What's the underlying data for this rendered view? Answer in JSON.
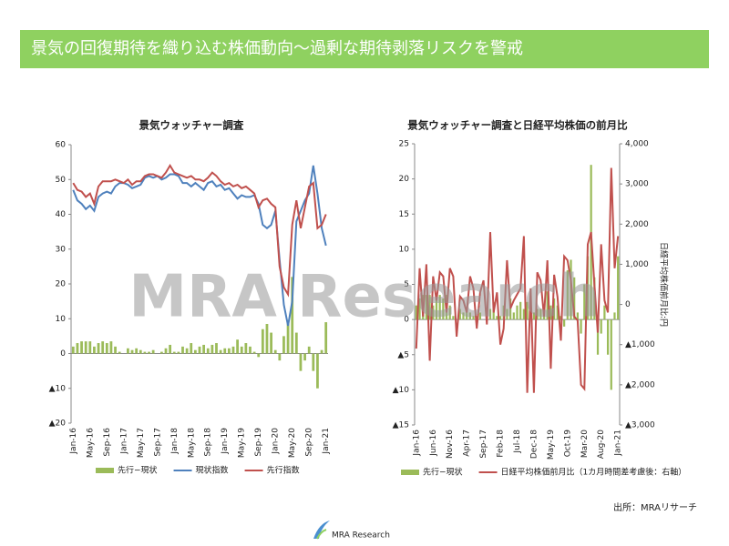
{
  "header": {
    "title": "景気の回復期待を織り込む株価動向～過剰な期待剥落リスクを警戒"
  },
  "source": "出所：MRAリサーチ",
  "logo": "MRA Research",
  "watermark": "MRA Research",
  "chart_data": [
    {
      "type": "combo",
      "title": "景気ウォッチャー調査",
      "categories": [
        "Jan-16",
        null,
        null,
        null,
        "May-16",
        null,
        null,
        null,
        "Sep-16",
        null,
        null,
        null,
        "Jan-17",
        null,
        null,
        null,
        "May-17",
        null,
        null,
        null,
        "Sep-17",
        null,
        null,
        null,
        "Jan-18",
        null,
        null,
        null,
        "May-18",
        null,
        null,
        null,
        "Sep-18",
        null,
        null,
        null,
        "Jan-19",
        null,
        null,
        null,
        "May-19",
        null,
        null,
        null,
        "Sep-19",
        null,
        null,
        null,
        "Jan-20",
        null,
        null,
        null,
        "May-20",
        null,
        null,
        null,
        "Sep-20",
        null,
        null,
        null,
        "Jan-21"
      ],
      "ylim": [
        -20,
        60
      ],
      "yticks": [
        {
          "value": -20,
          "label": "▲20"
        },
        {
          "value": -10,
          "label": "▲10"
        },
        0,
        10,
        20,
        30,
        40,
        50,
        60
      ],
      "grid": false,
      "legend": "bottom",
      "series": [
        {
          "name": "先行−現状",
          "type": "bar",
          "color": "#9bbb59",
          "values": [
            2,
            3,
            3.5,
            3.5,
            3.5,
            2,
            3,
            3.5,
            3,
            3.5,
            2,
            0.5,
            0,
            1.5,
            1,
            1.5,
            1,
            0.5,
            0.5,
            1,
            0,
            0.5,
            1.5,
            2.5,
            0.5,
            0.5,
            2,
            1.5,
            3,
            1,
            2,
            2.5,
            1.5,
            2.5,
            3,
            1,
            1.5,
            1.5,
            2,
            4,
            2,
            3,
            2,
            0.5,
            -1,
            7,
            8.5,
            6,
            1,
            -2,
            5,
            9,
            22,
            6,
            -5,
            -2,
            2,
            -5,
            -10,
            1,
            9
          ]
        },
        {
          "name": "現状指数",
          "type": "line",
          "color": "#4f81bd",
          "values": [
            47,
            44,
            43,
            41.5,
            42.5,
            41,
            45,
            46,
            46.5,
            46,
            48,
            49,
            49,
            48.5,
            47.5,
            48,
            48.5,
            50.5,
            51,
            50.5,
            51,
            50,
            50.5,
            51.5,
            51.5,
            51,
            49,
            49,
            48,
            49,
            48,
            47,
            49,
            49.5,
            48,
            48.5,
            47,
            47.5,
            46,
            44.5,
            45.5,
            45,
            45,
            45.5,
            43,
            37,
            36,
            37,
            41,
            27,
            14,
            8,
            15,
            38,
            41,
            44,
            46,
            54,
            46,
            36,
            31
          ]
        },
        {
          "name": "先行指数",
          "type": "line",
          "color": "#c0504d",
          "values": [
            49,
            47,
            46.5,
            45,
            46,
            43,
            48,
            49.5,
            49.5,
            49.5,
            50,
            49.5,
            49,
            50,
            48.5,
            49.5,
            49.5,
            51,
            51.5,
            51.5,
            51,
            50.5,
            52,
            54,
            52,
            51.5,
            51,
            50.5,
            51,
            50,
            50,
            49.5,
            50.5,
            52,
            51,
            49.5,
            48.5,
            49,
            48,
            48.5,
            47.5,
            48,
            47,
            46,
            42,
            44,
            44.5,
            43,
            42,
            25,
            19,
            17,
            37,
            44,
            36,
            42,
            48,
            49,
            36,
            37,
            40
          ]
        }
      ]
    },
    {
      "type": "combo",
      "title": "景気ウォッチャー調査と日経平均株価の前月比",
      "categories": [
        "Jan-16",
        null,
        null,
        null,
        null,
        "Jun-16",
        null,
        null,
        null,
        null,
        "Nov-16",
        null,
        null,
        null,
        null,
        "Apr-17",
        null,
        null,
        null,
        null,
        "Sep-17",
        null,
        null,
        null,
        null,
        "Feb-18",
        null,
        null,
        null,
        null,
        "Jul-18",
        null,
        null,
        null,
        null,
        "Dec-18",
        null,
        null,
        null,
        null,
        "May-19",
        null,
        null,
        null,
        null,
        "Oct-19",
        null,
        null,
        null,
        null,
        "Mar-20",
        null,
        null,
        null,
        null,
        "Aug-20",
        null,
        null,
        null,
        null,
        "Jan-21"
      ],
      "ylim": [
        -15,
        25
      ],
      "yticks": [
        {
          "value": -15,
          "label": "▲15"
        },
        {
          "value": -10,
          "label": "▲10"
        },
        {
          "value": -5,
          "label": "▲5"
        },
        0,
        5,
        10,
        15,
        20,
        25
      ],
      "y2lim": [
        -3000,
        4000
      ],
      "y2ticks": [
        {
          "value": -3000,
          "label": "▲3,000"
        },
        {
          "value": -2000,
          "label": "▲2,000"
        },
        {
          "value": -1000,
          "label": "▲1,000"
        },
        0,
        {
          "value": 1000,
          "label": "1,000"
        },
        {
          "value": 2000,
          "label": "2,000"
        },
        {
          "value": 3000,
          "label": "3,000"
        },
        {
          "value": 4000,
          "label": "4,000"
        }
      ],
      "y2label": "日経平均株価前月比:円",
      "grid": false,
      "legend": "bottom",
      "series": [
        {
          "name": "先行−現状",
          "type": "bar",
          "color": "#9bbb59",
          "values": [
            2,
            3,
            3.5,
            3.5,
            3.5,
            2,
            3,
            3.5,
            3,
            3.5,
            2,
            0.5,
            0,
            1.5,
            1,
            1.5,
            1,
            0.5,
            0.5,
            1,
            0,
            0.5,
            1.5,
            2.5,
            0.5,
            0.5,
            2,
            1.5,
            3,
            1,
            2,
            2.5,
            1.5,
            2.5,
            3,
            1,
            1.5,
            1.5,
            2,
            4,
            2,
            3,
            2,
            0.5,
            -1,
            7,
            8.5,
            6,
            1,
            -2,
            5,
            9,
            22,
            6,
            -5,
            -2,
            2,
            -5,
            -10,
            1,
            9
          ]
        },
        {
          "name": "日経平均株価前月比（1カ月時間差考慮後：右軸）",
          "type": "line",
          "axis": "y2",
          "color": "#c0504d",
          "values": [
            -1100,
            900,
            -300,
            1000,
            -1400,
            700,
            100,
            800,
            700,
            -200,
            900,
            700,
            -800,
            200,
            100,
            -200,
            700,
            400,
            -600,
            300,
            600,
            -500,
            1800,
            -200,
            300,
            -1000,
            -600,
            1100,
            -100,
            100,
            250,
            400,
            1700,
            -2200,
            400,
            -2200,
            800,
            600,
            -300,
            1100,
            -1600,
            740,
            190,
            -900,
            1200,
            1100,
            600,
            -300,
            -400,
            -2000,
            -2100,
            1500,
            1800,
            500,
            -700,
            1500,
            100,
            -200,
            3400,
            900,
            1700
          ]
        }
      ]
    }
  ]
}
